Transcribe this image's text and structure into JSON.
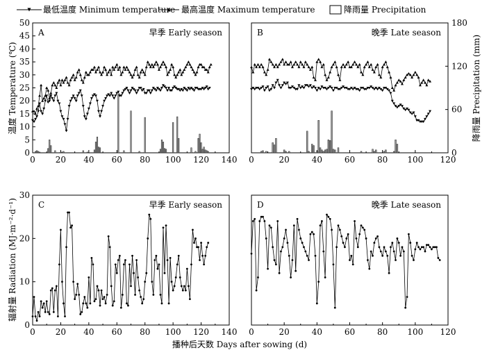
{
  "legend": {
    "min_label": "最低温度 Minimum temperature",
    "max_label": "最高温度 Maximum temperature",
    "precip_label": "降雨量 Precipitation"
  },
  "axes": {
    "y_left_top": "温度 Temperature (℃)",
    "y_right_top": "降雨量 Precipitation (mm)",
    "y_left_bottom": "辐射量 Radiation (MJ·m⁻²·d⁻¹)",
    "x_label": "播种后天数 Days after sowing (d)"
  },
  "chart_data": [
    {
      "id": "A",
      "type": "line",
      "letter": "A",
      "title": "早季 Early season",
      "xlim": [
        0,
        140
      ],
      "ylim": [
        0,
        50
      ],
      "y2lim": [
        0,
        180
      ],
      "xticks": [
        0,
        20,
        40,
        60,
        80,
        100,
        120,
        140
      ],
      "yticks": [
        0,
        5,
        10,
        15,
        20,
        25,
        30,
        35,
        40,
        45,
        50
      ],
      "series": [
        {
          "key": "tmin",
          "x_start": 0,
          "values": [
            12.5,
            12,
            13,
            14,
            16,
            19,
            16,
            15,
            17,
            20,
            22,
            19.5,
            20,
            22,
            21,
            20,
            22,
            23,
            20,
            19,
            16,
            14,
            13,
            11,
            8.5,
            13,
            18,
            20,
            21,
            22,
            21,
            20,
            22,
            23,
            24,
            22,
            18,
            14,
            13,
            15,
            17,
            19,
            21,
            22,
            22.5,
            22,
            20,
            16,
            14,
            16,
            18,
            20,
            21,
            22,
            22.5,
            22,
            23,
            22,
            21,
            22,
            23,
            23.5,
            22,
            22,
            23,
            24,
            24.5,
            25,
            24,
            23,
            24,
            25,
            24.5,
            24,
            23,
            24,
            25,
            25,
            24,
            24.5,
            23,
            23,
            24,
            24,
            23,
            24,
            25,
            24.5,
            24,
            25,
            24.5,
            24,
            25,
            26,
            25.5,
            25,
            24,
            25,
            24,
            24,
            25,
            25.5,
            25,
            24.5,
            24.5,
            24,
            24.5,
            24,
            25,
            24.5,
            24,
            25,
            24.5,
            25,
            24.5,
            24,
            25,
            25,
            24.5,
            24.5,
            24.5,
            25,
            24.5,
            25,
            25.5,
            24.5,
            25
          ]
        },
        {
          "key": "tmax",
          "x_start": 0,
          "values": [
            16,
            16,
            15,
            17,
            18,
            22,
            26,
            20,
            21,
            22,
            25,
            24,
            21,
            23,
            26,
            27,
            26,
            25,
            27,
            28,
            26,
            28,
            27,
            28,
            29,
            27,
            26,
            28,
            29,
            30,
            28,
            29,
            31,
            32,
            30,
            28,
            27,
            29,
            31,
            30,
            30,
            31,
            32,
            32,
            33,
            31,
            32,
            33,
            31,
            30,
            31,
            33,
            32,
            30,
            31,
            32,
            30,
            33,
            32,
            33,
            34,
            32,
            33,
            30,
            31,
            33,
            32,
            33,
            32,
            31,
            30,
            29,
            30,
            32,
            33,
            30,
            29,
            31,
            32,
            31,
            30,
            33,
            35,
            34,
            33,
            34,
            33,
            34,
            35,
            34,
            32,
            33,
            34,
            35,
            34,
            33,
            30,
            31,
            32,
            34,
            33,
            30,
            29,
            30,
            31,
            32,
            30,
            31,
            32,
            33,
            34,
            35,
            34,
            33,
            32,
            31,
            30,
            31,
            33,
            34,
            34,
            33,
            33,
            32,
            32,
            31,
            33,
            34
          ]
        },
        {
          "key": "precip",
          "x_start": 0,
          "values": [
            0,
            0,
            2,
            3,
            2,
            1,
            0,
            0,
            0,
            0,
            0,
            6,
            18,
            10,
            0,
            0,
            3,
            0,
            0,
            0,
            1,
            1,
            2,
            0,
            0,
            0,
            0,
            0,
            0,
            0,
            0,
            0,
            0,
            0,
            0,
            0,
            3,
            0,
            0,
            1,
            0,
            0,
            0,
            0,
            4,
            15,
            22,
            8,
            7,
            0,
            0,
            0,
            0,
            0,
            0,
            0,
            0,
            0,
            0,
            0,
            0,
            81,
            0,
            0,
            0,
            3,
            0,
            0,
            0,
            0,
            58,
            0,
            0,
            0,
            0,
            0,
            2,
            0,
            0,
            0,
            49,
            0,
            0,
            0,
            0,
            0,
            0,
            0,
            0,
            0,
            0,
            5,
            18,
            15,
            6,
            5,
            0,
            0,
            0,
            0,
            42,
            0,
            0,
            50,
            20,
            0,
            0,
            0,
            0,
            0,
            0,
            0,
            0,
            7,
            0,
            0,
            2,
            0,
            20,
            26,
            14,
            5,
            8,
            4,
            3,
            2,
            0,
            0
          ]
        }
      ]
    },
    {
      "id": "B",
      "type": "line",
      "letter": "B",
      "title": "晚季 Late season",
      "xlim": [
        0,
        120
      ],
      "ylim": [
        0,
        50
      ],
      "y2lim": [
        0,
        180
      ],
      "xticks": [
        0,
        20,
        40,
        60,
        80,
        100,
        120
      ],
      "y2ticks": [
        0,
        60,
        120,
        180
      ],
      "series": [
        {
          "key": "tmin",
          "x_start": 0,
          "values": [
            24.5,
            25,
            24.5,
            25,
            25,
            24.5,
            25,
            25.5,
            24,
            25,
            25.5,
            24,
            24.5,
            26,
            25,
            27,
            28,
            26,
            25,
            26,
            27,
            26.5,
            27,
            25,
            25,
            25.5,
            25,
            24.5,
            24.5,
            26,
            25,
            25.5,
            25,
            26,
            26,
            25.5,
            26,
            25,
            25.5,
            25,
            24,
            25,
            24.5,
            25.5,
            25,
            25,
            24.5,
            25,
            25.5,
            25,
            24,
            25,
            25,
            24.5,
            24.5,
            25,
            25.5,
            25,
            25,
            24.5,
            24.5,
            25,
            24.5,
            25,
            24.5,
            24.5,
            24,
            25,
            25,
            24.5,
            24.5,
            25,
            25,
            25.5,
            25,
            24.5,
            25,
            24.5,
            25,
            24.5,
            24,
            25,
            25,
            24.5,
            24,
            23,
            20,
            19,
            18,
            17.5,
            18,
            18.5,
            18,
            17,
            16.5,
            17,
            16.5,
            15.5,
            15,
            15.5,
            14,
            12.5,
            12.5,
            12,
            12,
            12,
            13,
            14,
            15,
            16
          ]
        },
        {
          "key": "tmax",
          "x_start": 0,
          "values": [
            33,
            31,
            34,
            33,
            34,
            33,
            34,
            33,
            31,
            30,
            32,
            36,
            35,
            34,
            33,
            34,
            33,
            34,
            35,
            36,
            34,
            35,
            34,
            34,
            35,
            33,
            34,
            35,
            34,
            33,
            35,
            34,
            33,
            35,
            34,
            33,
            32,
            33,
            29,
            28,
            35,
            36,
            35,
            33,
            34,
            30,
            28,
            29,
            31,
            33,
            34,
            35,
            33,
            30,
            28,
            33,
            34,
            33,
            34,
            35,
            33,
            33,
            34,
            35,
            34,
            33,
            34,
            31,
            30,
            33,
            34,
            35,
            33,
            34,
            32,
            31,
            33,
            34,
            30,
            29,
            33,
            34,
            35,
            33,
            31,
            29,
            25,
            24,
            26,
            27,
            28,
            27.5,
            26.5,
            28,
            29,
            30,
            30.5,
            30,
            29,
            30,
            31,
            30,
            29,
            26,
            27,
            28,
            27,
            26,
            28,
            27.5
          ]
        },
        {
          "key": "precip",
          "x_start": 0,
          "values": [
            0,
            0,
            0,
            0,
            0,
            0,
            2,
            3,
            0,
            2,
            0,
            0,
            0,
            14,
            11,
            20,
            0,
            0,
            0,
            0,
            4,
            2,
            0,
            2,
            0,
            0,
            0,
            0,
            0,
            0,
            0,
            0,
            0,
            0,
            30,
            2,
            0,
            12,
            10,
            0,
            2,
            45,
            7,
            4,
            2,
            4,
            5,
            18,
            17,
            58,
            5,
            4,
            0,
            7,
            0,
            0,
            0,
            0,
            0,
            0,
            0,
            0,
            0,
            0,
            0,
            0,
            0,
            2,
            0,
            0,
            0,
            0,
            0,
            0,
            5,
            2,
            4,
            0,
            0,
            0,
            0,
            2,
            4,
            0,
            0,
            0,
            0,
            2,
            18,
            12,
            0,
            0,
            0,
            0,
            0,
            0,
            0,
            0,
            0,
            0,
            0,
            0,
            0,
            0,
            0,
            0,
            0,
            0,
            0,
            0
          ]
        }
      ]
    },
    {
      "id": "C",
      "type": "line",
      "letter": "C",
      "title": "早季 Early season",
      "xlim": [
        0,
        140
      ],
      "ylim": [
        0,
        30
      ],
      "xticks": [
        0,
        20,
        40,
        60,
        80,
        100,
        120,
        140
      ],
      "yticks": [
        0,
        10,
        20,
        30
      ],
      "series": [
        {
          "key": "rad",
          "x_start": 0,
          "values": [
            2,
            6.5,
            2,
            1,
            3,
            2,
            5.5,
            4,
            5,
            3,
            5.5,
            3,
            2.5,
            8,
            8.5,
            3,
            8,
            9,
            2,
            14,
            22,
            10,
            5,
            2,
            18,
            26,
            26,
            22.5,
            23,
            10,
            6,
            7,
            9.5,
            7,
            2.5,
            3,
            5,
            6.5,
            5,
            4,
            11,
            5,
            15.5,
            14,
            5.5,
            6,
            9,
            8,
            4.5,
            8,
            6,
            6.5,
            5,
            7,
            20.5,
            18,
            9,
            4.5,
            5.5,
            14,
            12,
            15,
            16,
            4,
            7,
            14,
            15,
            5,
            4.5,
            14,
            9,
            16,
            12,
            7,
            15,
            11,
            8,
            6.5,
            5,
            6,
            10,
            12,
            20,
            25.5,
            24.5,
            10,
            7,
            15,
            16,
            13,
            14,
            7,
            5,
            22.5,
            12,
            23,
            15,
            5,
            15.5,
            10,
            8,
            9,
            11,
            14,
            16,
            11,
            9,
            8,
            9,
            8,
            13,
            9,
            6,
            14,
            22,
            19,
            20,
            18,
            18,
            15,
            19,
            16,
            14,
            16,
            18,
            19
          ]
        }
      ]
    },
    {
      "id": "D",
      "type": "line",
      "letter": "D",
      "title": "晚季 Late season",
      "xlim": [
        0,
        120
      ],
      "ylim": [
        0,
        30
      ],
      "xticks": [
        0,
        20,
        40,
        60,
        80,
        100,
        120
      ],
      "series": [
        {
          "key": "rad",
          "x_start": 0,
          "values": [
            16.5,
            24,
            24.5,
            8,
            11,
            24,
            25,
            25,
            24,
            20,
            13,
            23,
            22.5,
            18,
            15,
            14,
            24,
            12,
            17,
            18,
            20,
            22,
            19,
            16,
            11,
            15,
            23,
            12.5,
            24.5,
            22,
            20,
            19,
            18,
            17,
            16,
            15,
            21,
            21.5,
            21,
            16,
            5,
            10,
            23,
            24,
            17,
            11,
            25.5,
            25,
            24.5,
            22,
            14,
            4,
            18,
            23,
            22,
            20.5,
            19,
            18,
            20,
            21,
            15,
            16,
            14,
            24,
            20,
            18,
            21,
            23,
            22.5,
            22,
            20,
            15,
            13,
            17,
            16,
            19,
            20,
            20.5,
            18,
            17,
            16,
            18,
            17,
            16,
            12,
            18,
            19,
            17,
            15,
            20,
            19,
            16,
            18,
            17,
            4,
            6.5,
            21,
            19,
            16,
            15,
            17.5,
            19,
            18,
            17.5,
            18,
            18,
            17,
            18.5,
            18.5,
            18,
            17.5,
            18,
            18,
            18,
            15.5,
            15
          ]
        }
      ]
    }
  ]
}
